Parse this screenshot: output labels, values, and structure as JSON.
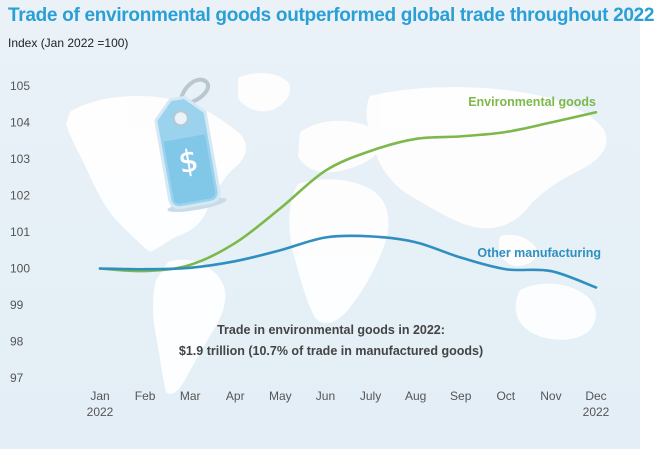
{
  "title": "Trade of environmental goods outperformed global trade throughout 2022",
  "subtitle": "Index (Jan 2022 =100)",
  "colors": {
    "title": "#2a9fd6",
    "environmental": "#7cb94a",
    "manufacturing": "#2f8fc0",
    "map": "#ffffff"
  },
  "icon": "price-tag-dollar-icon",
  "annotation": {
    "line1": "Trade in environmental goods in 2022:",
    "line2": "$1.9 trillion (10.7% of trade in manufactured goods)"
  },
  "chart_data": {
    "type": "line",
    "title": "Trade of environmental goods outperformed global trade throughout 2022",
    "ylabel": "Index (Jan 2022 =100)",
    "xlabel": "",
    "ylim": [
      97,
      105
    ],
    "yticks": [
      "105",
      "104",
      "103",
      "102",
      "101",
      "100",
      "99",
      "98",
      "97"
    ],
    "x": [
      "Jan",
      "Feb",
      "Mar",
      "Apr",
      "May",
      "Jun",
      "July",
      "Aug",
      "Sep",
      "Oct",
      "Nov",
      "Dec"
    ],
    "x_sub": {
      "first": "2022",
      "last": "2022"
    },
    "grid": false,
    "legend": "inline",
    "series": [
      {
        "name": "Environmental goods",
        "color": "#7cb94a",
        "values": [
          100.0,
          99.93,
          100.1,
          100.7,
          101.65,
          102.68,
          103.22,
          103.55,
          103.62,
          103.74,
          104.0,
          104.28
        ]
      },
      {
        "name": "Other manufacturing",
        "color": "#2f8fc0",
        "values": [
          100.0,
          99.98,
          100.02,
          100.2,
          100.5,
          100.85,
          100.88,
          100.72,
          100.3,
          99.98,
          99.93,
          99.48
        ]
      }
    ]
  }
}
